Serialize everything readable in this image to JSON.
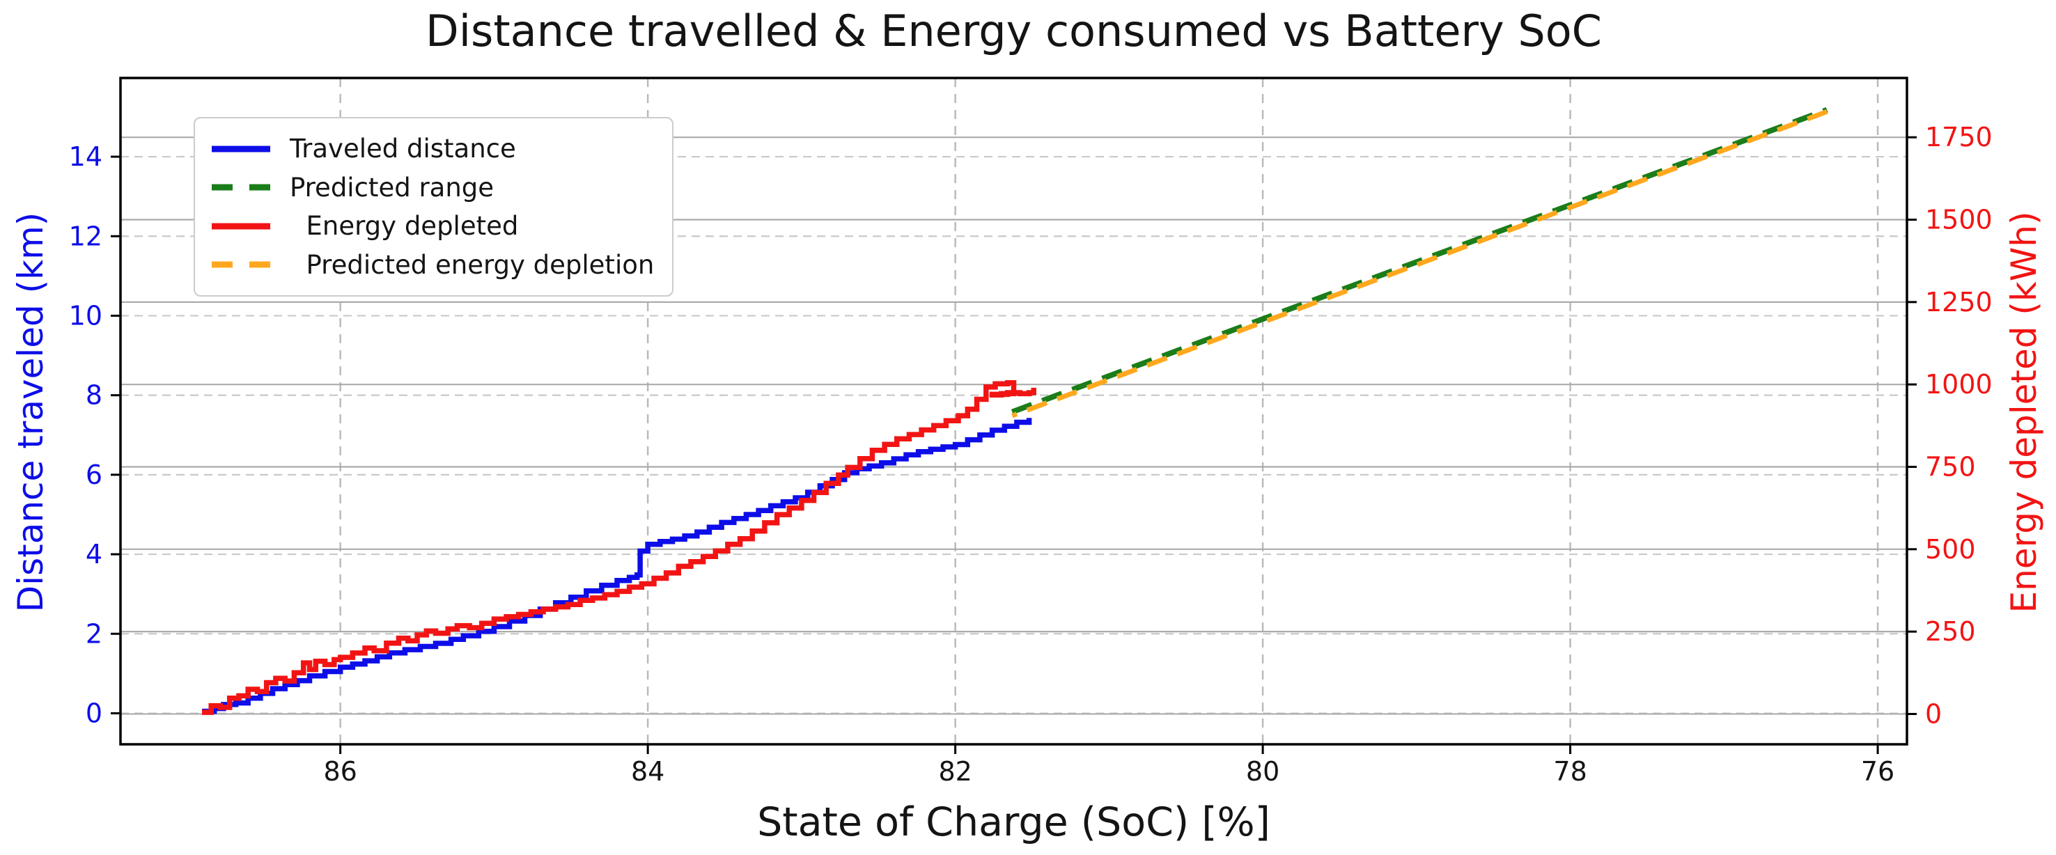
{
  "chart_data": {
    "type": "line",
    "title": "Distance travelled & Energy consumed vs Battery SoC",
    "xlabel": "State of Charge (SoC) [%]",
    "ylabel_left": "Distance traveled (km)",
    "ylabel_right": "Energy depleted (kWh)",
    "x_inverted": true,
    "xlim": [
      87.43,
      75.81
    ],
    "x_ticks": [
      86,
      84,
      82,
      80,
      78,
      76
    ],
    "x_tick_labels": [
      "86",
      "84",
      "82",
      "80",
      "78",
      "76"
    ],
    "ylim_left": [
      -0.78,
      15.98
    ],
    "y_ticks_left": [
      0,
      2,
      4,
      6,
      8,
      10,
      12,
      14
    ],
    "y_tick_labels_left": [
      "0",
      "2",
      "4",
      "6",
      "8",
      "10",
      "12",
      "14"
    ],
    "ylim_right": [
      -92,
      1930
    ],
    "y_ticks_right": [
      0,
      250,
      500,
      750,
      1000,
      1250,
      1500,
      1750
    ],
    "y_tick_labels_right": [
      "0",
      "250",
      "500",
      "750",
      "1000",
      "1250",
      "1500",
      "1750"
    ],
    "grid": {
      "vertical": "dashed",
      "left_axis": "dashed",
      "right_axis": "solid"
    },
    "legend_position": "upper left",
    "series": [
      {
        "name": "Traveled distance",
        "axis": "left",
        "color": "#0d0de8",
        "linestyle": "solid",
        "render": "step",
        "width": 7.5,
        "x": [
          86.9,
          86.82,
          86.76,
          86.68,
          86.6,
          86.52,
          86.44,
          86.36,
          86.28,
          86.2,
          86.1,
          86.0,
          85.92,
          85.84,
          85.76,
          85.68,
          85.58,
          85.48,
          85.38,
          85.28,
          85.2,
          85.1,
          85.0,
          84.9,
          84.8,
          84.7,
          84.6,
          84.5,
          84.4,
          84.3,
          84.2,
          84.12,
          84.07,
          84.05,
          84.0,
          83.92,
          83.84,
          83.76,
          83.68,
          83.6,
          83.52,
          83.44,
          83.36,
          83.28,
          83.2,
          83.12,
          83.04,
          82.96,
          82.88,
          82.8,
          82.72,
          82.64,
          82.56,
          82.48,
          82.4,
          82.32,
          82.24,
          82.16,
          82.08,
          82.0,
          81.92,
          81.84,
          81.76,
          81.68,
          81.6,
          81.52
        ],
        "y": [
          0.05,
          0.12,
          0.22,
          0.26,
          0.38,
          0.5,
          0.62,
          0.72,
          0.82,
          0.94,
          1.05,
          1.16,
          1.24,
          1.32,
          1.42,
          1.52,
          1.6,
          1.68,
          1.76,
          1.86,
          1.95,
          2.06,
          2.18,
          2.32,
          2.46,
          2.62,
          2.78,
          2.92,
          3.08,
          3.22,
          3.34,
          3.42,
          3.48,
          4.08,
          4.25,
          4.32,
          4.38,
          4.46,
          4.56,
          4.68,
          4.8,
          4.9,
          5.0,
          5.1,
          5.22,
          5.32,
          5.42,
          5.56,
          5.72,
          5.88,
          6.05,
          6.15,
          6.22,
          6.3,
          6.4,
          6.5,
          6.58,
          6.64,
          6.7,
          6.76,
          6.88,
          7.0,
          7.12,
          7.22,
          7.32,
          7.43
        ]
      },
      {
        "name": "Predicted range",
        "axis": "left",
        "color": "#1a7d1a",
        "linestyle": "dashed",
        "render": "line",
        "width": 8,
        "dash": "30 16",
        "dashoffset": 0,
        "x": [
          81.63,
          76.33
        ],
        "y": [
          7.58,
          15.18
        ]
      },
      {
        "name": "  Energy depleted",
        "axis": "right",
        "color": "#f21414",
        "linestyle": "solid",
        "render": "step",
        "width": 7.5,
        "x": [
          86.9,
          86.84,
          86.78,
          86.72,
          86.66,
          86.6,
          86.54,
          86.48,
          86.42,
          86.36,
          86.3,
          86.24,
          86.2,
          86.16,
          86.1,
          86.04,
          86.0,
          85.92,
          85.84,
          85.78,
          85.7,
          85.62,
          85.56,
          85.5,
          85.44,
          85.38,
          85.3,
          85.24,
          85.16,
          85.08,
          85.0,
          84.92,
          84.84,
          84.76,
          84.68,
          84.6,
          84.52,
          84.44,
          84.36,
          84.28,
          84.2,
          84.12,
          84.04,
          83.96,
          83.88,
          83.8,
          83.72,
          83.64,
          83.56,
          83.48,
          83.4,
          83.32,
          83.24,
          83.16,
          83.08,
          83.0,
          82.92,
          82.84,
          82.76,
          82.7,
          82.62,
          82.54,
          82.46,
          82.38,
          82.3,
          82.22,
          82.14,
          82.06,
          81.98,
          81.92,
          81.86,
          81.8,
          81.74,
          81.66,
          81.62,
          81.62,
          81.7,
          81.76,
          81.66,
          81.58,
          81.52,
          81.49
        ],
        "y": [
          5,
          25,
          20,
          48,
          55,
          75,
          68,
          95,
          108,
          100,
          125,
          155,
          135,
          160,
          150,
          165,
          172,
          185,
          200,
          192,
          215,
          230,
          222,
          240,
          252,
          245,
          258,
          268,
          262,
          275,
          288,
          295,
          302,
          310,
          318,
          325,
          332,
          345,
          352,
          362,
          372,
          385,
          395,
          412,
          428,
          448,
          462,
          478,
          495,
          515,
          532,
          555,
          580,
          605,
          625,
          648,
          672,
          700,
          725,
          748,
          775,
          800,
          818,
          835,
          848,
          862,
          875,
          890,
          905,
          925,
          955,
          992,
          1002,
          1005,
          1000,
          972,
          968,
          970,
          975,
          972,
          975,
          990
        ]
      },
      {
        "name": "  Predicted energy depletion",
        "axis": "right",
        "color": "#ffa81e",
        "linestyle": "dashed",
        "render": "line",
        "width": 7,
        "dash": "30 16",
        "dashoffset": 23,
        "x": [
          81.63,
          76.33
        ],
        "y": [
          905,
          1828
        ]
      }
    ],
    "colors": {
      "title": "#141414",
      "xlabel": "#141414",
      "x_tick": "#141414",
      "y_left": "#0d0de8",
      "y_right": "#f21414",
      "grid_solid": "#ababab",
      "grid_dash_left": "#c9c9c9",
      "grid_dash_vertical": "#b8b8b8",
      "spine": "#000000",
      "background": "#ffffff"
    }
  }
}
